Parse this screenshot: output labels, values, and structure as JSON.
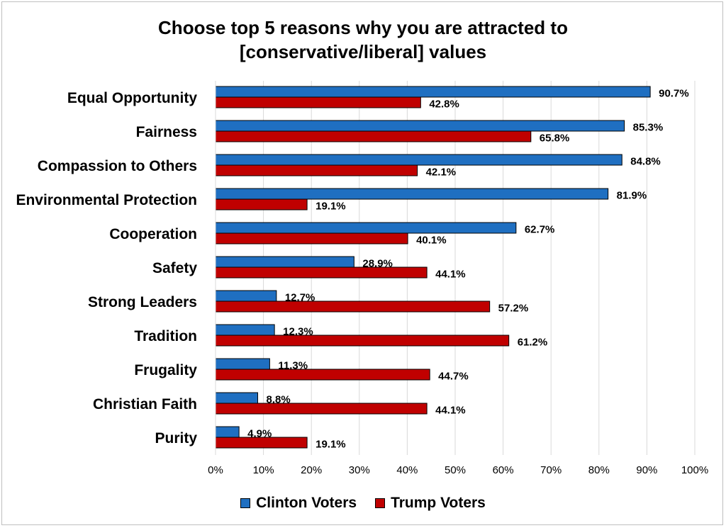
{
  "chart_data": {
    "type": "bar",
    "orientation": "horizontal",
    "title_lines": [
      "Choose top 5 reasons why you are attracted to",
      "[conservative/liberal] values"
    ],
    "categories": [
      "Equal Opportunity",
      "Fairness",
      "Compassion to Others",
      "Environmental Protection",
      "Cooperation",
      "Safety",
      "Strong Leaders",
      "Tradition",
      "Frugality",
      "Christian Faith",
      "Purity"
    ],
    "series": [
      {
        "name": "Clinton Voters",
        "color": "#1f6fc1",
        "values": [
          90.7,
          85.3,
          84.8,
          81.9,
          62.7,
          28.9,
          12.7,
          12.3,
          11.3,
          8.8,
          4.9
        ],
        "labels": [
          "90.7%",
          "85.3%",
          "84.8%",
          "81.9%",
          "62.7%",
          "28.9%",
          "12.7%",
          "12.3%",
          "11.3%",
          "8.8%",
          "4.9%"
        ]
      },
      {
        "name": "Trump Voters",
        "color": "#c00000",
        "values": [
          42.8,
          65.8,
          42.1,
          19.1,
          40.1,
          44.1,
          57.2,
          61.2,
          44.7,
          44.1,
          19.1
        ],
        "labels": [
          "42.8%",
          "65.8%",
          "42.1%",
          "19.1%",
          "40.1%",
          "44.1%",
          "57.2%",
          "61.2%",
          "44.7%",
          "44.1%",
          "19.1%"
        ]
      }
    ],
    "xlim": [
      0,
      100
    ],
    "x_ticks": [
      "0%",
      "10%",
      "20%",
      "30%",
      "40%",
      "50%",
      "60%",
      "70%",
      "80%",
      "90%",
      "100%"
    ],
    "grid": true,
    "legend_position": "bottom"
  }
}
